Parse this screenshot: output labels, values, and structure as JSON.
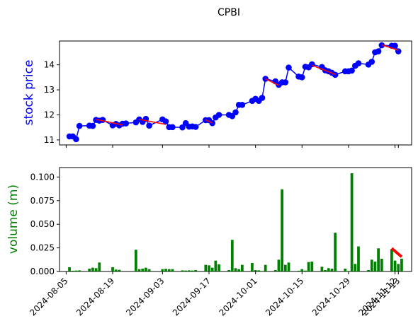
{
  "title": "CPBI",
  "colors": {
    "price_line": "#0000ff",
    "trend": "#ff0000",
    "volume_bar": "#008000",
    "price_label": "#0000ff",
    "volume_label": "#008000"
  },
  "chart_data": [
    {
      "type": "line",
      "title": "CPBI",
      "ylabel": "stock price",
      "ylim": [
        10.8,
        14.95
      ],
      "yticks": [
        11,
        12,
        13,
        14
      ],
      "series": [
        {
          "points": [
            [
              "2024-08-06",
              11.14
            ],
            [
              "2024-08-07",
              11.14
            ],
            [
              "2024-08-08",
              11.03
            ],
            [
              "2024-08-09",
              11.56
            ],
            [
              "2024-08-12",
              11.57
            ],
            [
              "2024-08-13",
              11.56
            ],
            [
              "2024-08-14",
              11.8
            ],
            [
              "2024-08-15",
              11.77
            ],
            [
              "2024-08-16",
              11.8
            ],
            [
              "2024-08-19",
              11.58
            ],
            [
              "2024-08-20",
              11.64
            ],
            [
              "2024-08-21",
              11.58
            ],
            [
              "2024-08-22",
              11.65
            ],
            [
              "2024-08-23",
              11.66
            ],
            [
              "2024-08-26",
              11.7
            ],
            [
              "2024-08-27",
              11.82
            ],
            [
              "2024-08-28",
              11.72
            ],
            [
              "2024-08-29",
              11.84
            ],
            [
              "2024-08-30",
              11.57
            ],
            [
              "2024-09-03",
              11.82
            ],
            [
              "2024-09-04",
              11.74
            ],
            [
              "2024-09-05",
              11.51
            ],
            [
              "2024-09-06",
              11.51
            ],
            [
              "2024-09-09",
              11.5
            ],
            [
              "2024-09-10",
              11.67
            ],
            [
              "2024-09-11",
              11.53
            ],
            [
              "2024-09-12",
              11.54
            ],
            [
              "2024-09-13",
              11.52
            ],
            [
              "2024-09-16",
              11.79
            ],
            [
              "2024-09-17",
              11.79
            ],
            [
              "2024-09-18",
              11.67
            ],
            [
              "2024-09-19",
              11.9
            ],
            [
              "2024-09-20",
              12.0
            ],
            [
              "2024-09-23",
              12.0
            ],
            [
              "2024-09-24",
              11.95
            ],
            [
              "2024-09-25",
              12.1
            ],
            [
              "2024-09-26",
              12.4
            ],
            [
              "2024-09-27",
              12.4
            ],
            [
              "2024-09-30",
              12.56
            ],
            [
              "2024-10-01",
              12.64
            ],
            [
              "2024-10-02",
              12.56
            ],
            [
              "2024-10-03",
              12.68
            ],
            [
              "2024-10-04",
              13.44
            ],
            [
              "2024-10-07",
              13.34
            ],
            [
              "2024-10-08",
              13.2
            ],
            [
              "2024-10-09",
              13.3
            ],
            [
              "2024-10-10",
              13.3
            ],
            [
              "2024-10-11",
              13.89
            ],
            [
              "2024-10-14",
              13.53
            ],
            [
              "2024-10-15",
              13.5
            ],
            [
              "2024-10-16",
              13.92
            ],
            [
              "2024-10-17",
              13.9
            ],
            [
              "2024-10-18",
              14.02
            ],
            [
              "2024-10-21",
              13.91
            ],
            [
              "2024-10-22",
              13.78
            ],
            [
              "2024-10-23",
              13.74
            ],
            [
              "2024-10-24",
              13.68
            ],
            [
              "2024-10-25",
              13.6
            ],
            [
              "2024-10-28",
              13.74
            ],
            [
              "2024-10-29",
              13.74
            ],
            [
              "2024-10-30",
              13.77
            ],
            [
              "2024-10-31",
              13.96
            ],
            [
              "2024-11-01",
              14.06
            ],
            [
              "2024-11-04",
              14.01
            ],
            [
              "2024-11-05",
              14.12
            ],
            [
              "2024-11-06",
              14.5
            ],
            [
              "2024-11-07",
              14.54
            ],
            [
              "2024-11-08",
              14.78
            ],
            [
              "2024-11-11",
              14.76
            ],
            [
              "2024-11-12",
              14.76
            ],
            [
              "2024-11-13",
              14.54
            ]
          ]
        }
      ],
      "trend_segments": [
        [
          [
            "2024-08-14",
            11.82
          ],
          [
            "2024-08-22",
            11.6
          ]
        ],
        [
          [
            "2024-08-27",
            11.82
          ],
          [
            "2024-09-04",
            11.62
          ]
        ],
        [
          [
            "2024-09-16",
            11.8
          ],
          [
            "2024-09-18",
            11.68
          ]
        ],
        [
          [
            "2024-10-04",
            13.44
          ],
          [
            "2024-10-08",
            13.18
          ]
        ],
        [
          [
            "2024-10-18",
            13.98
          ],
          [
            "2024-10-25",
            13.62
          ]
        ],
        [
          [
            "2024-11-08",
            14.8
          ],
          [
            "2024-11-13",
            14.58
          ]
        ]
      ]
    },
    {
      "type": "bar",
      "ylabel": "volume (m)",
      "ylim": [
        0,
        0.11
      ],
      "yticks": [
        "0.000",
        "0.025",
        "0.050",
        "0.075",
        "0.100"
      ],
      "ytick_values": [
        0,
        0.025,
        0.05,
        0.075,
        0.1
      ],
      "bars": [
        [
          "2024-08-06",
          0.0045
        ],
        [
          "2024-08-07",
          0.0008
        ],
        [
          "2024-08-08",
          0.001
        ],
        [
          "2024-08-09",
          0.0012
        ],
        [
          "2024-08-12",
          0.003
        ],
        [
          "2024-08-13",
          0.004
        ],
        [
          "2024-08-14",
          0.0035
        ],
        [
          "2024-08-15",
          0.0095
        ],
        [
          "2024-08-16",
          0.0
        ],
        [
          "2024-08-19",
          0.0045
        ],
        [
          "2024-08-20",
          0.002
        ],
        [
          "2024-08-21",
          0.0018
        ],
        [
          "2024-08-22",
          0.0
        ],
        [
          "2024-08-23",
          0.0
        ],
        [
          "2024-08-26",
          0.023
        ],
        [
          "2024-08-27",
          0.0025
        ],
        [
          "2024-08-28",
          0.003
        ],
        [
          "2024-08-29",
          0.004
        ],
        [
          "2024-08-30",
          0.0025
        ],
        [
          "2024-09-03",
          0.0025
        ],
        [
          "2024-09-04",
          0.0028
        ],
        [
          "2024-09-05",
          0.0025
        ],
        [
          "2024-09-06",
          0.0025
        ],
        [
          "2024-09-09",
          0.0012
        ],
        [
          "2024-09-10",
          0.001
        ],
        [
          "2024-09-11",
          0.0012
        ],
        [
          "2024-09-12",
          0.001
        ],
        [
          "2024-09-13",
          0.0015
        ],
        [
          "2024-09-16",
          0.007
        ],
        [
          "2024-09-17",
          0.0065
        ],
        [
          "2024-09-18",
          0.004
        ],
        [
          "2024-09-19",
          0.0115
        ],
        [
          "2024-09-20",
          0.0075
        ],
        [
          "2024-09-23",
          0.0015
        ],
        [
          "2024-09-24",
          0.0335
        ],
        [
          "2024-09-25",
          0.0035
        ],
        [
          "2024-09-26",
          0.0025
        ],
        [
          "2024-09-27",
          0.007
        ],
        [
          "2024-09-30",
          0.009
        ],
        [
          "2024-10-01",
          0.0015
        ],
        [
          "2024-10-02",
          0.0012
        ],
        [
          "2024-10-03",
          0.0005
        ],
        [
          "2024-10-04",
          0.007
        ],
        [
          "2024-10-07",
          0.0015
        ],
        [
          "2024-10-08",
          0.0125
        ],
        [
          "2024-10-09",
          0.087
        ],
        [
          "2024-10-10",
          0.007
        ],
        [
          "2024-10-11",
          0.0095
        ],
        [
          "2024-10-14",
          0.0008
        ],
        [
          "2024-10-15",
          0.0025
        ],
        [
          "2024-10-16",
          0.001
        ],
        [
          "2024-10-17",
          0.01
        ],
        [
          "2024-10-18",
          0.0105
        ],
        [
          "2024-10-21",
          0.005
        ],
        [
          "2024-10-22",
          0.0015
        ],
        [
          "2024-10-23",
          0.0035
        ],
        [
          "2024-10-24",
          0.003
        ],
        [
          "2024-10-25",
          0.041
        ],
        [
          "2024-10-28",
          0.003
        ],
        [
          "2024-10-29",
          0.0005
        ],
        [
          "2024-10-30",
          0.104
        ],
        [
          "2024-10-31",
          0.008
        ],
        [
          "2024-11-01",
          0.0265
        ],
        [
          "2024-11-04",
          0.0015
        ],
        [
          "2024-11-05",
          0.0125
        ],
        [
          "2024-11-06",
          0.0105
        ],
        [
          "2024-11-07",
          0.0245
        ],
        [
          "2024-11-08",
          0.0135
        ],
        [
          "2024-11-11",
          0.0235
        ],
        [
          "2024-11-12",
          0.0115
        ],
        [
          "2024-11-13",
          0.008
        ],
        [
          "2024-11-14",
          0.0135
        ]
      ],
      "trend_segments": [
        [
          [
            "2024-11-11",
            0.0245
          ],
          [
            "2024-11-14",
            0.0155
          ]
        ]
      ]
    }
  ],
  "xaxis": {
    "range": [
      "2024-08-03",
      "2024-11-17"
    ],
    "ticks": [
      "2024-08-05",
      "2024-08-19",
      "2024-09-03",
      "2024-09-17",
      "2024-10-01",
      "2024-10-15",
      "2024-10-29",
      "2024-11-12",
      "2024-11-13"
    ]
  }
}
